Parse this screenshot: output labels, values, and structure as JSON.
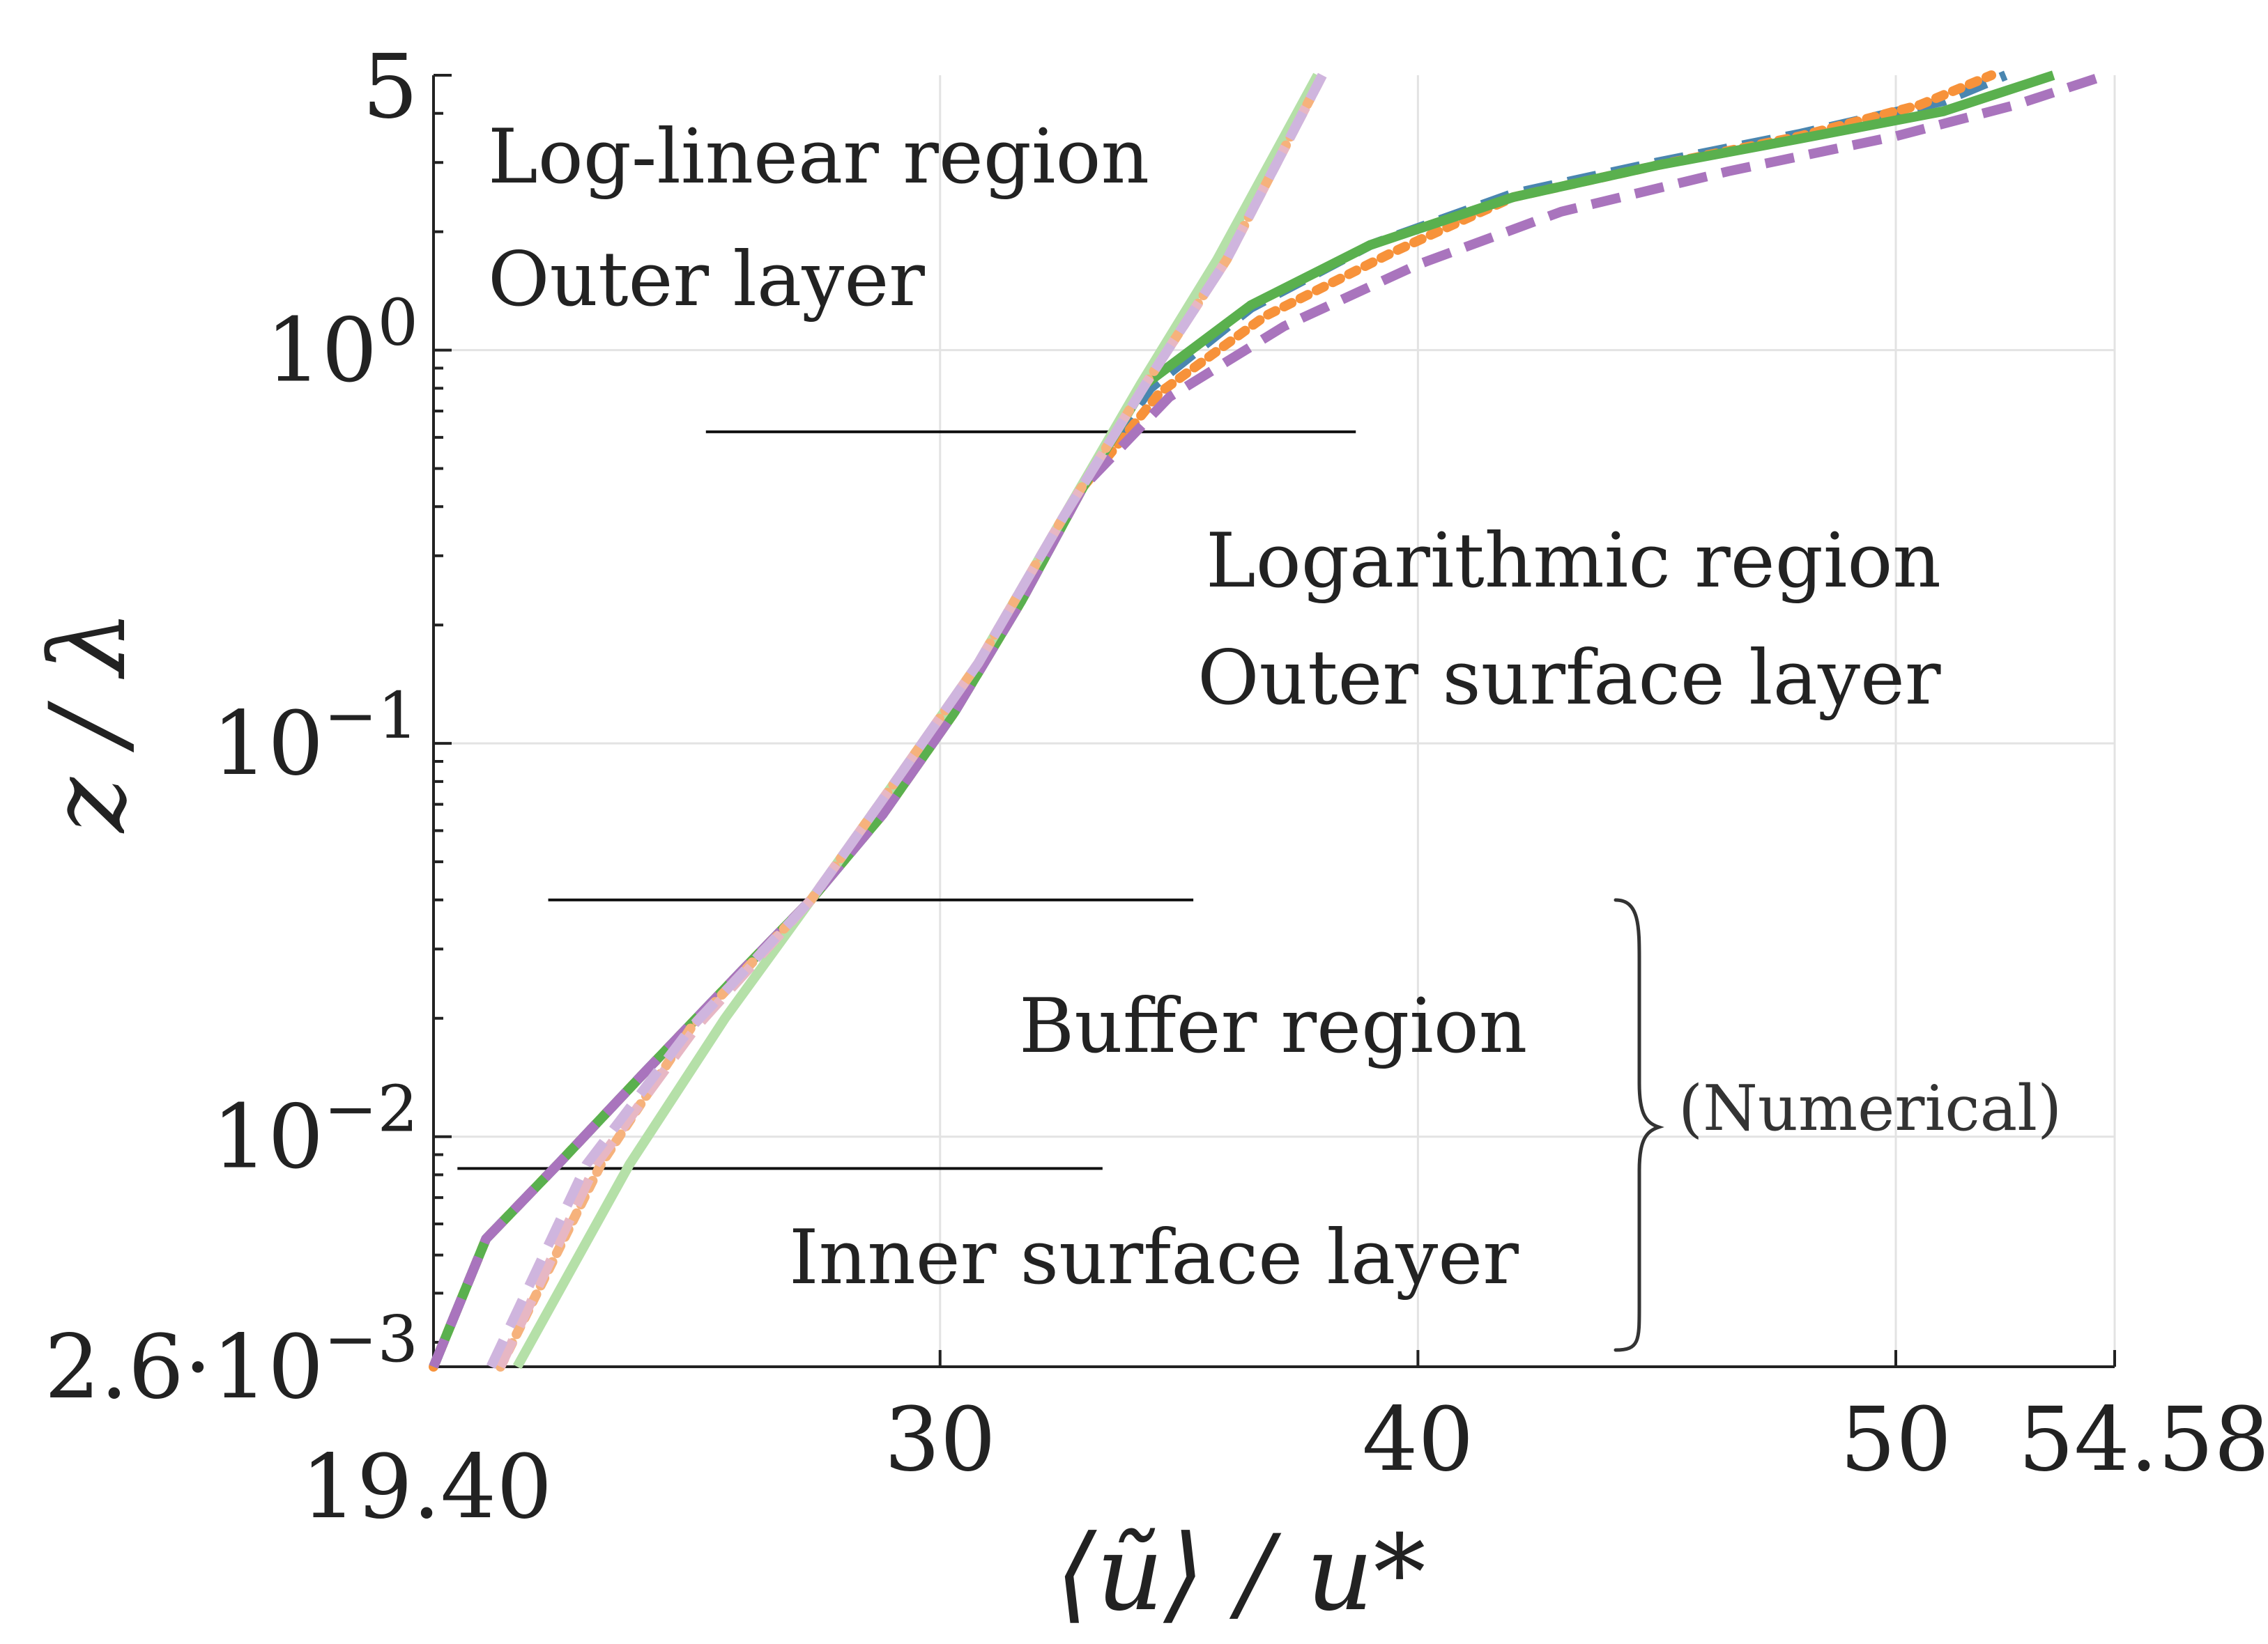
{
  "chart_data": {
    "type": "line",
    "title": "",
    "xlabel": "⟨ũ⟩ / u*",
    "ylabel": "z / λ",
    "xscale": "linear",
    "yscale": "log",
    "xlim": [
      19.4,
      54.58
    ],
    "ylim": [
      0.0026,
      5
    ],
    "grid": true,
    "x_ticks": [
      {
        "value": 19.4,
        "label": "19.40"
      },
      {
        "value": 30,
        "label": "30"
      },
      {
        "value": 40,
        "label": "40"
      },
      {
        "value": 50,
        "label": "50"
      },
      {
        "value": 54.58,
        "label": "54.58"
      }
    ],
    "y_ticks": [
      {
        "value": 0.0026,
        "label": "2.6·10",
        "exp": "−3"
      },
      {
        "value": 0.01,
        "label": "10",
        "exp": "−2"
      },
      {
        "value": 0.1,
        "label": "10",
        "exp": "−1"
      },
      {
        "value": 1,
        "label": "10",
        "exp": "0"
      },
      {
        "value": 5,
        "label": "5",
        "exp": ""
      }
    ],
    "series": [
      {
        "name": "numerical-blue-dashed",
        "color": "#4a86b0",
        "dash": "dashed",
        "points": [
          [
            19.4,
            0.0026
          ],
          [
            20.5,
            0.0055
          ],
          [
            22.0,
            0.0085
          ],
          [
            23.8,
            0.0145
          ],
          [
            25.8,
            0.026
          ],
          [
            27.3,
            0.04
          ],
          [
            28.8,
            0.066
          ],
          [
            30.3,
            0.12
          ],
          [
            31.7,
            0.23
          ],
          [
            33.0,
            0.45
          ],
          [
            34.4,
            0.8
          ],
          [
            36.5,
            1.28
          ],
          [
            39.0,
            1.85
          ],
          [
            42.0,
            2.5
          ],
          [
            45.0,
            3.0
          ],
          [
            48.0,
            3.55
          ],
          [
            51.0,
            4.3
          ],
          [
            52.3,
            5.0
          ]
        ]
      },
      {
        "name": "numerical-orange-dotted",
        "color": "#f7923a",
        "dash": "dotted",
        "points": [
          [
            19.4,
            0.0026
          ],
          [
            20.5,
            0.0055
          ],
          [
            22.0,
            0.0085
          ],
          [
            23.8,
            0.0145
          ],
          [
            25.8,
            0.026
          ],
          [
            27.3,
            0.04
          ],
          [
            28.8,
            0.066
          ],
          [
            30.3,
            0.12
          ],
          [
            31.7,
            0.23
          ],
          [
            33.0,
            0.45
          ],
          [
            34.6,
            0.78
          ],
          [
            36.8,
            1.22
          ],
          [
            39.5,
            1.78
          ],
          [
            42.0,
            2.45
          ],
          [
            45.0,
            2.95
          ],
          [
            48.0,
            3.5
          ],
          [
            50.5,
            4.2
          ],
          [
            52.0,
            5.0
          ]
        ]
      },
      {
        "name": "numerical-green-solid",
        "color": "#5ab04e",
        "dash": "solid",
        "points": [
          [
            19.4,
            0.0026
          ],
          [
            20.5,
            0.0055
          ],
          [
            22.0,
            0.0085
          ],
          [
            23.8,
            0.0145
          ],
          [
            25.8,
            0.026
          ],
          [
            27.3,
            0.04
          ],
          [
            28.8,
            0.066
          ],
          [
            30.3,
            0.12
          ],
          [
            31.7,
            0.23
          ],
          [
            33.0,
            0.45
          ],
          [
            34.3,
            0.82
          ],
          [
            36.5,
            1.3
          ],
          [
            39.0,
            1.85
          ],
          [
            42.0,
            2.45
          ],
          [
            45.0,
            2.95
          ],
          [
            48.0,
            3.45
          ],
          [
            51.0,
            4.05
          ],
          [
            53.3,
            5.0
          ]
        ]
      },
      {
        "name": "numerical-purple-dashed",
        "color": "#a974bd",
        "dash": "dashed",
        "points": [
          [
            19.4,
            0.0026
          ],
          [
            20.5,
            0.0055
          ],
          [
            22.0,
            0.0085
          ],
          [
            23.8,
            0.0145
          ],
          [
            25.8,
            0.026
          ],
          [
            27.3,
            0.04
          ],
          [
            28.8,
            0.066
          ],
          [
            30.3,
            0.12
          ],
          [
            31.7,
            0.23
          ],
          [
            33.0,
            0.45
          ],
          [
            34.8,
            0.76
          ],
          [
            37.2,
            1.15
          ],
          [
            40.0,
            1.65
          ],
          [
            43.0,
            2.25
          ],
          [
            46.5,
            2.85
          ],
          [
            50.0,
            3.5
          ],
          [
            52.5,
            4.2
          ],
          [
            54.4,
            5.0
          ]
        ]
      },
      {
        "name": "model-light-green-solid",
        "color": "#b5e0a8",
        "dash": "solid",
        "points": [
          [
            21.15,
            0.0026
          ],
          [
            23.5,
            0.0085
          ],
          [
            25.5,
            0.02
          ],
          [
            27.3,
            0.04
          ],
          [
            29.0,
            0.078
          ],
          [
            30.8,
            0.16
          ],
          [
            32.6,
            0.38
          ],
          [
            34.2,
            0.82
          ],
          [
            35.8,
            1.7
          ],
          [
            37.9,
            5.0
          ]
        ]
      },
      {
        "name": "model-light-orange-dotted",
        "color": "#f6b27c",
        "dash": "dotted",
        "points": [
          [
            20.8,
            0.0026
          ],
          [
            22.9,
            0.0085
          ],
          [
            24.8,
            0.019
          ],
          [
            27.3,
            0.04
          ],
          [
            29.0,
            0.078
          ],
          [
            30.8,
            0.16
          ],
          [
            32.6,
            0.38
          ],
          [
            34.3,
            0.82
          ],
          [
            36.0,
            1.7
          ],
          [
            38.0,
            5.0
          ]
        ]
      },
      {
        "name": "model-light-pink-dashed",
        "color": "#e7b7c4",
        "dash": "dashed",
        "points": [
          [
            20.8,
            0.0026
          ],
          [
            22.8,
            0.0085
          ],
          [
            24.9,
            0.019
          ],
          [
            27.3,
            0.04
          ],
          [
            29.0,
            0.078
          ],
          [
            30.8,
            0.16
          ],
          [
            32.6,
            0.38
          ],
          [
            34.3,
            0.82
          ],
          [
            36.0,
            1.7
          ],
          [
            38.0,
            5.0
          ]
        ]
      },
      {
        "name": "model-light-purple-dashed",
        "color": "#cfb5de",
        "dash": "dashed",
        "points": [
          [
            20.6,
            0.0026
          ],
          [
            22.6,
            0.0085
          ],
          [
            24.8,
            0.019
          ],
          [
            27.3,
            0.04
          ],
          [
            29.0,
            0.078
          ],
          [
            30.8,
            0.16
          ],
          [
            32.6,
            0.38
          ],
          [
            34.3,
            0.82
          ],
          [
            36.0,
            1.7
          ],
          [
            38.0,
            5.0
          ]
        ]
      }
    ],
    "dividers": [
      {
        "y": 0.62,
        "x1": 25.1,
        "x2": 38.7
      },
      {
        "y": 0.04,
        "x1": 21.8,
        "x2": 35.3
      },
      {
        "y": 0.0083,
        "x1": 19.9,
        "x2": 33.4
      }
    ],
    "regions": [
      {
        "name": "log-linear",
        "line1": "Log-linear region",
        "line2": "Outer layer"
      },
      {
        "name": "logarithmic",
        "line1": "Logarithmic region",
        "line2": "Outer surface layer"
      },
      {
        "name": "buffer",
        "line1": "Buffer region",
        "line2": ""
      },
      {
        "name": "inner",
        "line1": "Inner surface layer",
        "line2": ""
      }
    ],
    "annotation": "(Numerical)"
  }
}
